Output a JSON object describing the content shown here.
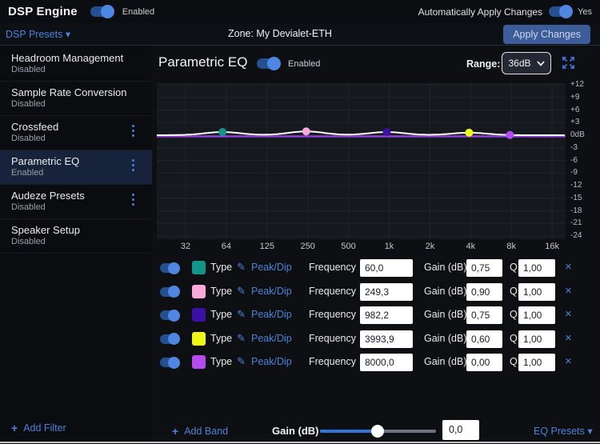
{
  "colors": {
    "accent_blue": "#4d82d8",
    "toggle_knob": "#4f86e2",
    "toggle_track": "#24508f",
    "apply_button_bg": "#3d5c9a",
    "selected_item_bg": "#17233b",
    "plot_background": "#15181d",
    "plot_grid": "#20242b",
    "curve_white": "#ffffff",
    "reference_purple": "#8a3fd6"
  },
  "icons": {
    "pencil": "✎",
    "close": "×",
    "plus": "+",
    "chevron_down": "▾"
  },
  "top_bar": {
    "title": "DSP Engine",
    "enabled_label": "Enabled",
    "auto_apply_label": "Automatically Apply Changes",
    "auto_apply_value": "Yes"
  },
  "presets_bar": {
    "dsp_presets": "DSP Presets",
    "zone": "Zone: My Devialet-ETH",
    "apply_button": "Apply Changes"
  },
  "sidebar": {
    "items": [
      {
        "title": "Headroom Management",
        "status": "Disabled",
        "menu": false,
        "selected": false
      },
      {
        "title": "Sample Rate Conversion",
        "status": "Disabled",
        "menu": false,
        "selected": false
      },
      {
        "title": "Crossfeed",
        "status": "Disabled",
        "menu": true,
        "selected": false
      },
      {
        "title": "Parametric EQ",
        "status": "Enabled",
        "menu": true,
        "selected": true
      },
      {
        "title": "Audeze Presets",
        "status": "Disabled",
        "menu": true,
        "selected": false
      },
      {
        "title": "Speaker Setup",
        "status": "Disabled",
        "menu": false,
        "selected": false
      }
    ],
    "add_filter": "Add Filter"
  },
  "main_header": {
    "title": "Parametric EQ",
    "toggle_label": "Enabled",
    "range_label": "Range:",
    "range_value": "36dB"
  },
  "band_labels": {
    "type": "Type",
    "frequency": "Frequency",
    "gain": "Gain (dB)",
    "q": "Q"
  },
  "bands": [
    {
      "enabled": true,
      "color": "#129488",
      "type": "Peak/Dip",
      "frequency": "60,0",
      "gain": "0,75",
      "q": "1,00"
    },
    {
      "enabled": true,
      "color": "#f9a8dc",
      "type": "Peak/Dip",
      "frequency": "249,3",
      "gain": "0,90",
      "q": "1,00"
    },
    {
      "enabled": true,
      "color": "#3a10a5",
      "type": "Peak/Dip",
      "frequency": "982,2",
      "gain": "0,75",
      "q": "1,00"
    },
    {
      "enabled": true,
      "color": "#eef616",
      "type": "Peak/Dip",
      "frequency": "3993,9",
      "gain": "0,60",
      "q": "1,00"
    },
    {
      "enabled": true,
      "color": "#b44af0",
      "type": "Peak/Dip",
      "frequency": "8000,0",
      "gain": "0,00",
      "q": "1,00"
    }
  ],
  "chart_data": {
    "type": "line",
    "title": "Parametric EQ frequency response",
    "x_axis": {
      "scale": "log",
      "unit": "Hz",
      "ticks": [
        "32",
        "64",
        "125",
        "250",
        "500",
        "1k",
        "2k",
        "4k",
        "8k",
        "16k"
      ],
      "xlim_hz": [
        20,
        20000
      ]
    },
    "y_axis": {
      "unit": "dB",
      "ticks": [
        "+12",
        "+9",
        "+6",
        "+3",
        "0dB",
        "-3",
        "-6",
        "-9",
        "-12",
        "-15",
        "-18",
        "-21",
        "-24"
      ],
      "ylim_db": [
        -24,
        12
      ],
      "step_db": 3
    },
    "grid": true,
    "series": [
      {
        "name": "eq-response-curve",
        "color": "#ffffff",
        "built_from": "band_points"
      },
      {
        "name": "zero-db-reference-line",
        "color": "#8a3fd6",
        "value_db": 0
      }
    ],
    "band_points": [
      {
        "freq": 60.0,
        "gain_db": 0.75,
        "q": 1.0,
        "color": "#129488"
      },
      {
        "freq": 249.3,
        "gain_db": 0.9,
        "q": 1.0,
        "color": "#f9a8dc"
      },
      {
        "freq": 982.2,
        "gain_db": 0.75,
        "q": 1.0,
        "color": "#3a10a5"
      },
      {
        "freq": 3993.9,
        "gain_db": 0.6,
        "q": 1.0,
        "color": "#eef616"
      },
      {
        "freq": 8000.0,
        "gain_db": 0.0,
        "q": 1.0,
        "color": "#b44af0"
      }
    ]
  },
  "footer": {
    "add_band": "Add Band",
    "gain_label": "Gain (dB)",
    "gain_value": "0,0",
    "eq_presets": "EQ Presets"
  }
}
